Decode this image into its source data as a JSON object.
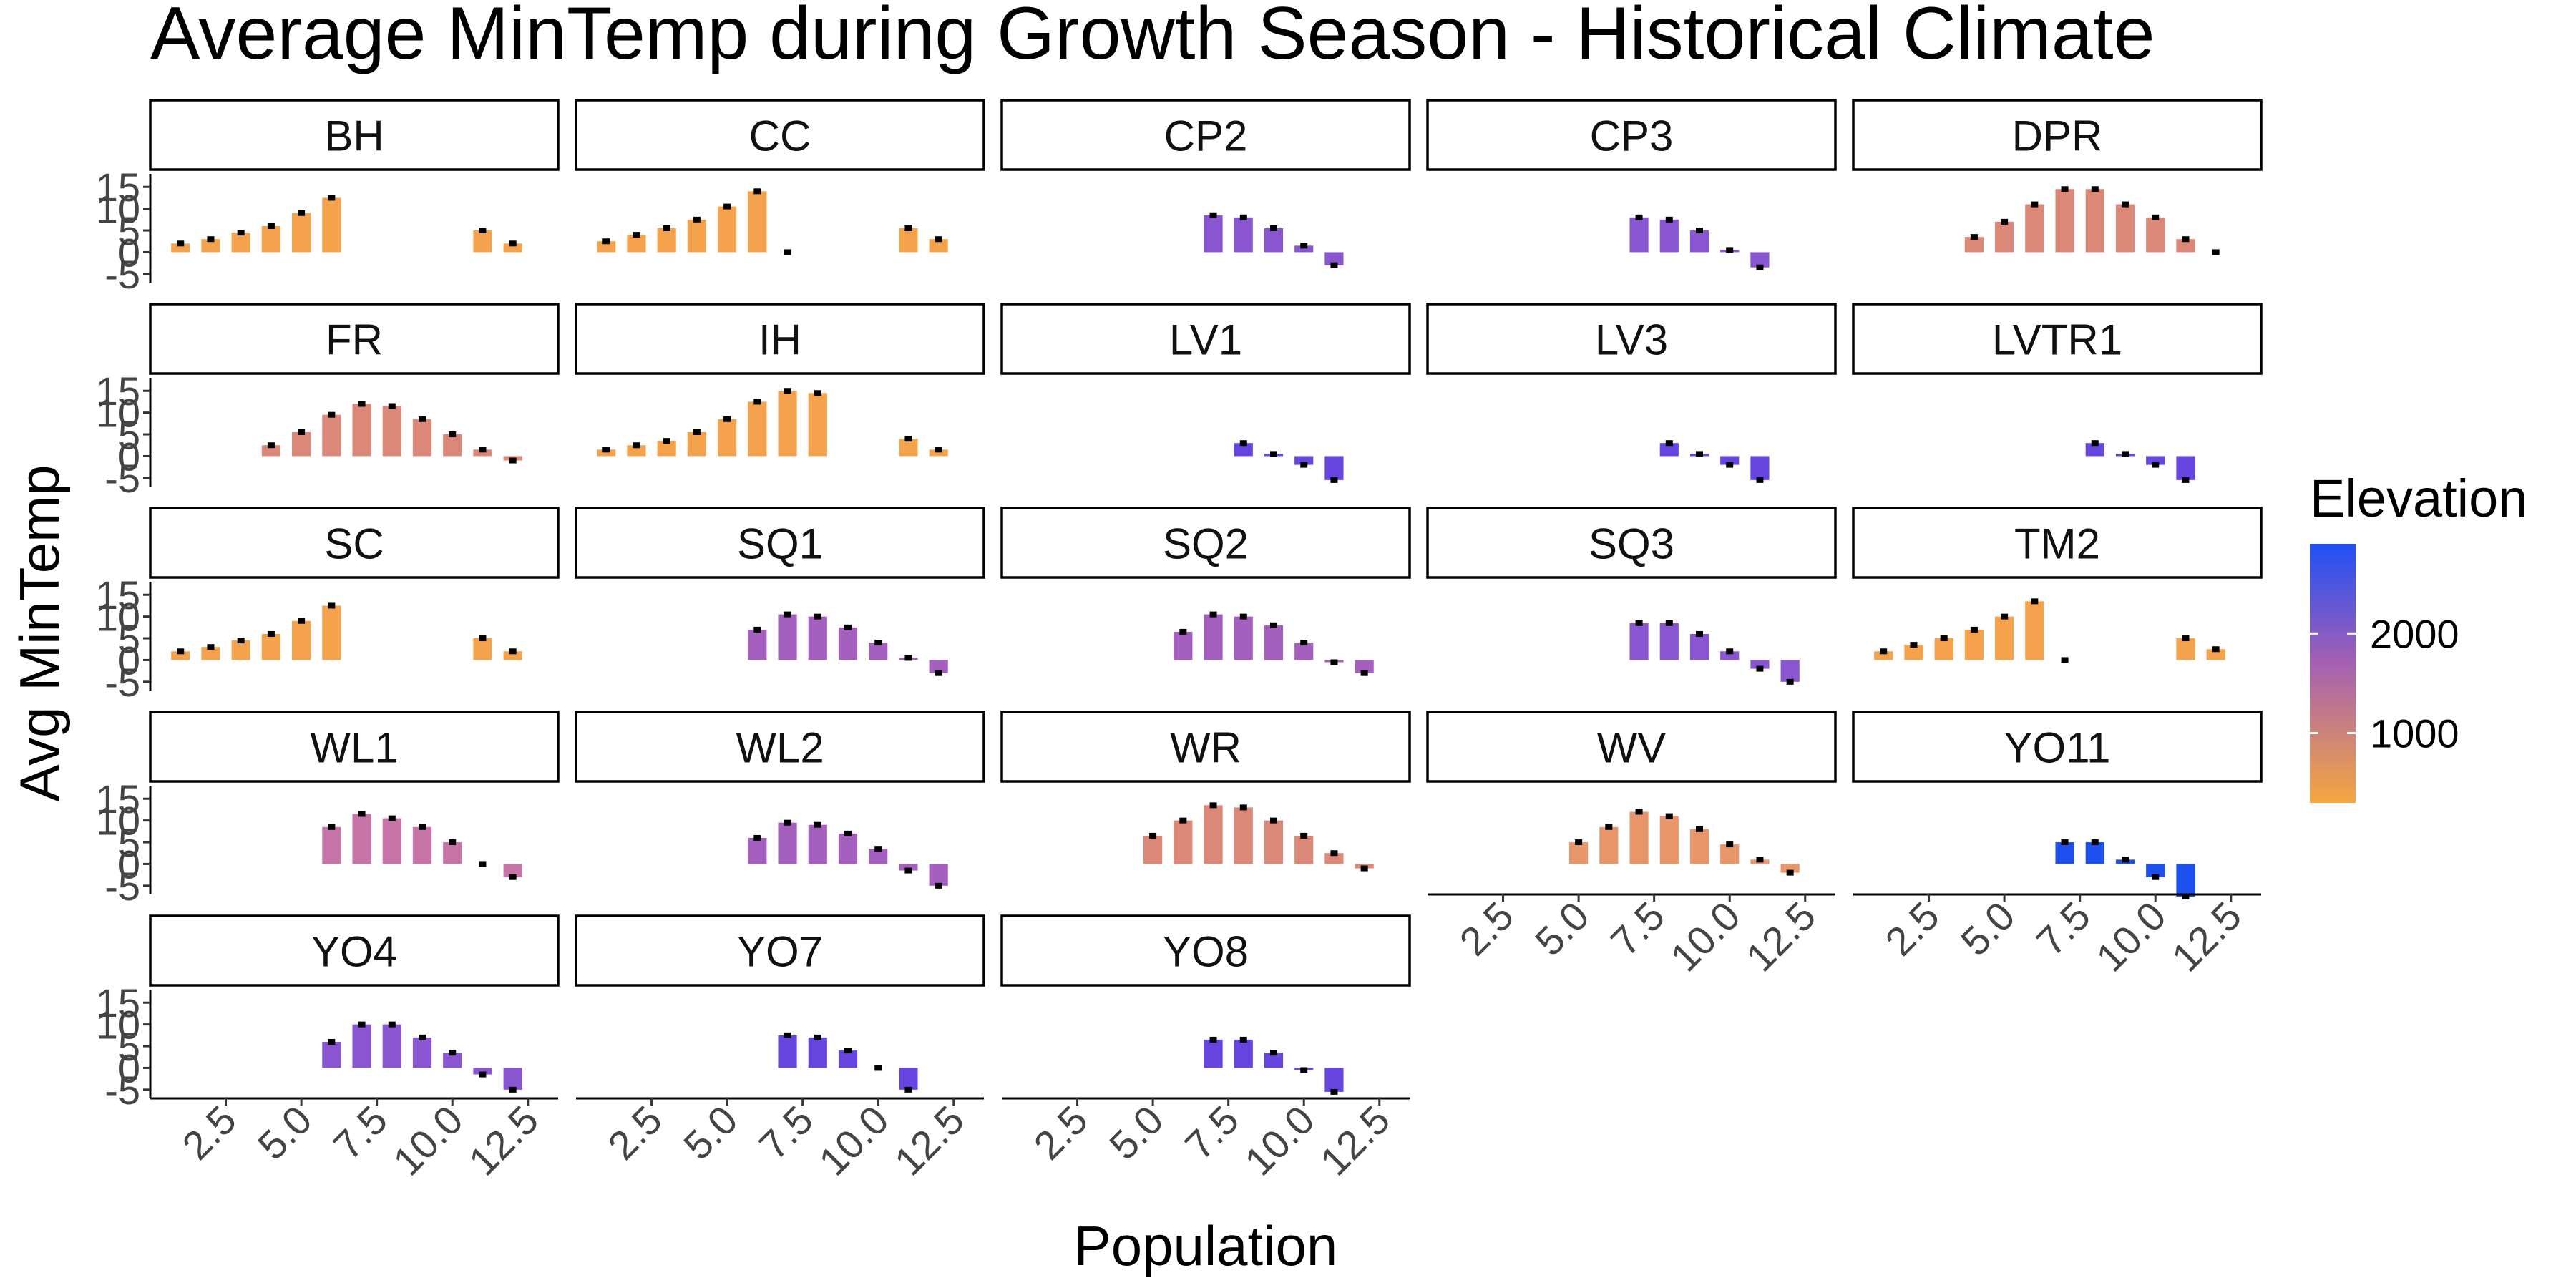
{
  "chart_data": {
    "type": "bar",
    "title": "Average MinTemp during Growth Season - Historical Climate",
    "xlabel": "Population",
    "ylabel": "Avg MinTemp",
    "xlim": [
      0,
      13.5
    ],
    "ylim": [
      -7,
      18
    ],
    "x_ticks": [
      "2.5",
      "5.0",
      "7.5",
      "10.0",
      "12.5"
    ],
    "x_tick_values": [
      2.5,
      5.0,
      7.5,
      10.0,
      12.5
    ],
    "y_ticks": [
      "-5",
      "0",
      "5",
      "10",
      "15"
    ],
    "y_tick_values": [
      -5,
      0,
      5,
      10,
      15
    ],
    "legend": {
      "title": "Elevation",
      "position": "right",
      "labels": [
        "2000",
        "1000"
      ],
      "label_values": [
        2000,
        1000
      ],
      "range": [
        300,
        2900
      ],
      "color_low": "#F5A640",
      "color_mid": "#A25FB5",
      "color_high": "#2050F5"
    },
    "facets": [
      {
        "name": "BH",
        "color": "#F4A24C",
        "x": [
          1,
          2,
          3,
          4,
          5,
          6,
          11,
          12
        ],
        "values": [
          2,
          3,
          4.5,
          6,
          9,
          12.5,
          5,
          2
        ]
      },
      {
        "name": "CC",
        "color": "#F4A24C",
        "x": [
          1,
          2,
          3,
          4,
          5,
          6,
          7,
          11,
          12
        ],
        "values": [
          2.5,
          4,
          5.5,
          7.5,
          10.5,
          14,
          0,
          5.5,
          3
        ]
      },
      {
        "name": "CP2",
        "color": "#8A55D0",
        "x": [
          7,
          8,
          9,
          10,
          11
        ],
        "values": [
          8.5,
          8,
          5.5,
          1.5,
          -3
        ]
      },
      {
        "name": "CP3",
        "color": "#8A55D0",
        "x": [
          7,
          8,
          9,
          10,
          11
        ],
        "values": [
          8,
          7.5,
          5,
          0.5,
          -3.5
        ]
      },
      {
        "name": "DPR",
        "color": "#DC8878",
        "x": [
          4,
          5,
          6,
          7,
          8,
          9,
          10,
          11,
          12
        ],
        "values": [
          3.5,
          7,
          11,
          14.5,
          14.5,
          11,
          8,
          3,
          0
        ]
      },
      {
        "name": "FR",
        "color": "#DC8878",
        "x": [
          4,
          5,
          6,
          7,
          8,
          9,
          10,
          11,
          12
        ],
        "values": [
          2.5,
          5.5,
          9.5,
          12,
          11.5,
          8.5,
          5,
          1.5,
          -1
        ]
      },
      {
        "name": "IH",
        "color": "#F4A24C",
        "x": [
          1,
          2,
          3,
          4,
          5,
          6,
          7,
          8,
          11,
          12
        ],
        "values": [
          1.5,
          2.5,
          3.5,
          5.5,
          8.5,
          12.5,
          15,
          14.5,
          4,
          1.5
        ]
      },
      {
        "name": "LV1",
        "color": "#6645E0",
        "x": [
          8,
          9,
          10,
          11
        ],
        "values": [
          3,
          0.5,
          -2,
          -5.5
        ]
      },
      {
        "name": "LV3",
        "color": "#6645E0",
        "x": [
          8,
          9,
          10,
          11
        ],
        "values": [
          3,
          0.5,
          -2,
          -5.5
        ]
      },
      {
        "name": "LVTR1",
        "color": "#6645E0",
        "x": [
          8,
          9,
          10,
          11
        ],
        "values": [
          3,
          0.5,
          -2,
          -5.5
        ]
      },
      {
        "name": "SC",
        "color": "#F4A24C",
        "x": [
          1,
          2,
          3,
          4,
          5,
          6,
          11,
          12
        ],
        "values": [
          2,
          3,
          4.5,
          6,
          9,
          12.5,
          5,
          2
        ]
      },
      {
        "name": "SQ1",
        "color": "#A55FBF",
        "x": [
          6,
          7,
          8,
          9,
          10,
          11,
          12
        ],
        "values": [
          7,
          10.5,
          10,
          7.5,
          4,
          0.5,
          -3
        ]
      },
      {
        "name": "SQ2",
        "color": "#A55FBF",
        "x": [
          6,
          7,
          8,
          9,
          10,
          11,
          12
        ],
        "values": [
          6.5,
          10.5,
          10,
          8,
          4,
          -0.5,
          -3
        ]
      },
      {
        "name": "SQ3",
        "color": "#8A55D0",
        "x": [
          7,
          8,
          9,
          10,
          11,
          12
        ],
        "values": [
          8.5,
          8.5,
          6,
          2,
          -2,
          -5
        ]
      },
      {
        "name": "TM2",
        "color": "#F4A24C",
        "x": [
          1,
          2,
          3,
          4,
          5,
          6,
          7,
          11,
          12
        ],
        "values": [
          2,
          3.5,
          5,
          7,
          10,
          13.5,
          0,
          5,
          2.5
        ]
      },
      {
        "name": "WL1",
        "color": "#C774A8",
        "x": [
          6,
          7,
          8,
          9,
          10,
          11,
          12
        ],
        "values": [
          8.5,
          11.5,
          10.5,
          8.5,
          5,
          0,
          -3
        ]
      },
      {
        "name": "WL2",
        "color": "#A55FBF",
        "x": [
          6,
          7,
          8,
          9,
          10,
          11,
          12
        ],
        "values": [
          6,
          9.5,
          9,
          7,
          3.5,
          -1.5,
          -5
        ]
      },
      {
        "name": "WR",
        "color": "#DC8878",
        "x": [
          5,
          6,
          7,
          8,
          9,
          10,
          11,
          12
        ],
        "values": [
          6.5,
          10,
          13.5,
          13,
          10,
          6.5,
          2.5,
          -1
        ]
      },
      {
        "name": "WV",
        "color": "#E9966A",
        "x": [
          5,
          6,
          7,
          8,
          9,
          10,
          11,
          12
        ],
        "values": [
          5,
          8.5,
          12,
          11,
          8,
          4.5,
          1,
          -2
        ]
      },
      {
        "name": "YO11",
        "color": "#1E50F0",
        "x": [
          7,
          8,
          9,
          10,
          11
        ],
        "values": [
          5,
          5,
          1,
          -3,
          -7.5
        ]
      },
      {
        "name": "YO4",
        "color": "#8A55D0",
        "x": [
          6,
          7,
          8,
          9,
          10,
          11,
          12
        ],
        "values": [
          6,
          10,
          10,
          7,
          3.5,
          -1.5,
          -5
        ]
      },
      {
        "name": "YO7",
        "color": "#6645E0",
        "x": [
          7,
          8,
          9,
          10,
          11
        ],
        "values": [
          7.5,
          7,
          4,
          0,
          -5
        ]
      },
      {
        "name": "YO8",
        "color": "#6645E0",
        "x": [
          7,
          8,
          9,
          10,
          11
        ],
        "values": [
          6.5,
          6.5,
          3.5,
          -0.5,
          -5.5
        ]
      }
    ]
  }
}
